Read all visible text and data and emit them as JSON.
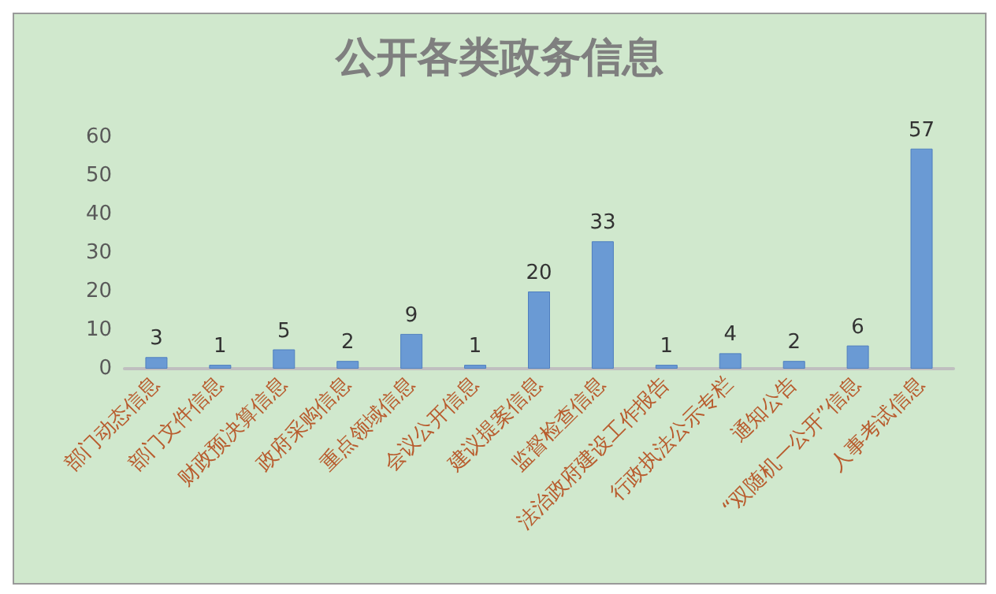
{
  "chart_data": {
    "type": "bar",
    "title": "公开各类政务信息",
    "categories": [
      "部门动态信息",
      "部门文件信息",
      "财政预决算信息",
      "政府采购信息",
      "重点领域信息",
      "会议公开信息",
      "建议提案信息",
      "监督检查信息",
      "法治政府建设工作报告",
      "行政执法公示专栏",
      "通知公告",
      "“双随机一公开”信息",
      "人事考试信息"
    ],
    "values": [
      3,
      1,
      5,
      2,
      9,
      1,
      20,
      33,
      1,
      4,
      2,
      6,
      57
    ],
    "color": "#6a9ad4",
    "ylim": [
      0,
      60
    ],
    "yticks": [
      0,
      10,
      20,
      30,
      40,
      50,
      60
    ],
    "data_labels": true
  }
}
